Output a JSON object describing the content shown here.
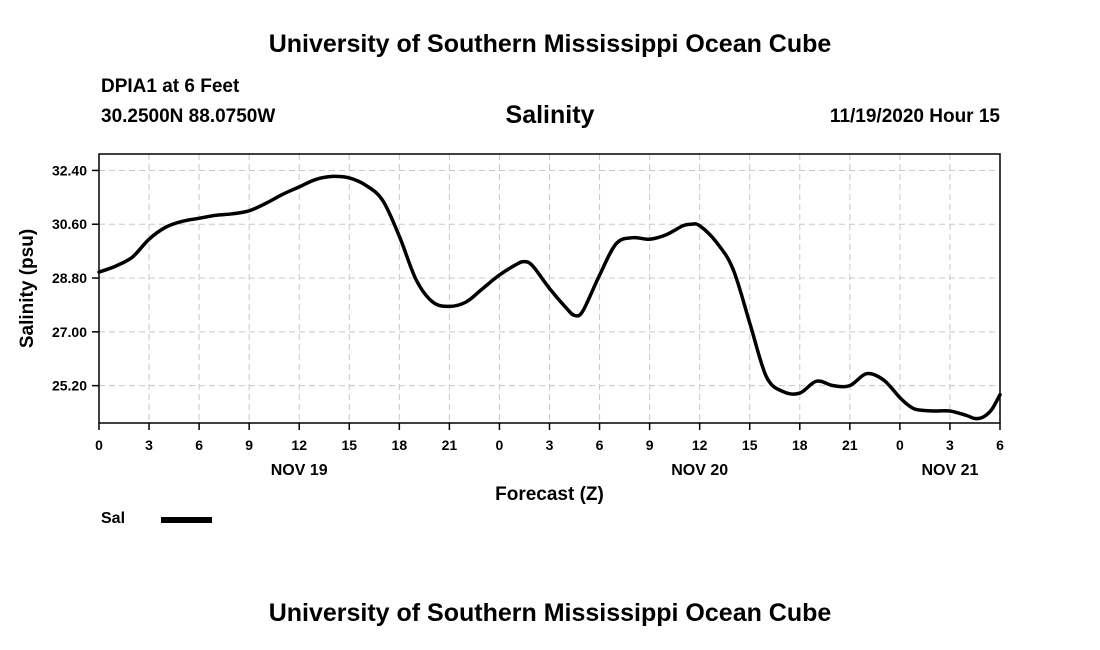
{
  "header": {
    "title": "University of Southern Mississippi Ocean Cube",
    "station": "DPIA1 at 6 Feet",
    "coordinates": "30.2500N 88.0750W",
    "variable": "Salinity",
    "datetime": "11/19/2020 Hour 15"
  },
  "footer": {
    "title": "University of Southern Mississippi Ocean Cube"
  },
  "legend": {
    "label": "Sal"
  },
  "chart_data": {
    "type": "line",
    "title": "Salinity",
    "xlabel": "Forecast (Z)",
    "ylabel": "Salinity (psu)",
    "ylim": [
      23.95,
      32.95
    ],
    "xlim": [
      0,
      54
    ],
    "x_tick_values": [
      0,
      3,
      6,
      9,
      12,
      15,
      18,
      21,
      24,
      27,
      30,
      33,
      36,
      39,
      42,
      45,
      48,
      51,
      54
    ],
    "x_tick_labels": [
      "0",
      "3",
      "6",
      "9",
      "12",
      "15",
      "18",
      "21",
      "0",
      "3",
      "6",
      "9",
      "12",
      "15",
      "18",
      "21",
      "0",
      "3",
      "6"
    ],
    "y_tick_values": [
      25.2,
      27.0,
      28.8,
      30.6,
      32.4
    ],
    "y_tick_labels": [
      "25.20",
      "27.00",
      "28.80",
      "30.60",
      "32.40"
    ],
    "day_labels": [
      {
        "x": 12,
        "label": "NOV 19"
      },
      {
        "x": 36,
        "label": "NOV 20"
      },
      {
        "x": 51,
        "label": "NOV 21"
      }
    ],
    "grid": true,
    "legend_position": "bottom-left",
    "series": [
      {
        "name": "Sal",
        "color": "#000000",
        "x": [
          0,
          1,
          2,
          3,
          4,
          5,
          6,
          7,
          8,
          9,
          10,
          11,
          12,
          13,
          14,
          15,
          16,
          17,
          18,
          19,
          20,
          21,
          22,
          23,
          24,
          25,
          25.5,
          26,
          27,
          28,
          28.5,
          29,
          30,
          31,
          32,
          33,
          34,
          35,
          35.5,
          36,
          37,
          38,
          39,
          40,
          41,
          42,
          43,
          44,
          45,
          46,
          47,
          48,
          48.5,
          49,
          50,
          51,
          52,
          52.5,
          53,
          53.5,
          54
        ],
        "values": [
          29.0,
          29.2,
          29.5,
          30.1,
          30.5,
          30.7,
          30.8,
          30.9,
          30.95,
          31.05,
          31.3,
          31.6,
          31.85,
          32.1,
          32.2,
          32.15,
          31.9,
          31.4,
          30.2,
          28.75,
          28.0,
          27.85,
          28.0,
          28.45,
          28.9,
          29.25,
          29.35,
          29.2,
          28.45,
          27.8,
          27.55,
          27.7,
          28.9,
          29.95,
          30.15,
          30.1,
          30.25,
          30.55,
          30.6,
          30.55,
          30.0,
          29.1,
          27.3,
          25.5,
          25.0,
          24.95,
          25.35,
          25.2,
          25.2,
          25.6,
          25.4,
          24.8,
          24.55,
          24.4,
          24.35,
          24.35,
          24.2,
          24.1,
          24.15,
          24.4,
          24.9
        ]
      }
    ]
  }
}
